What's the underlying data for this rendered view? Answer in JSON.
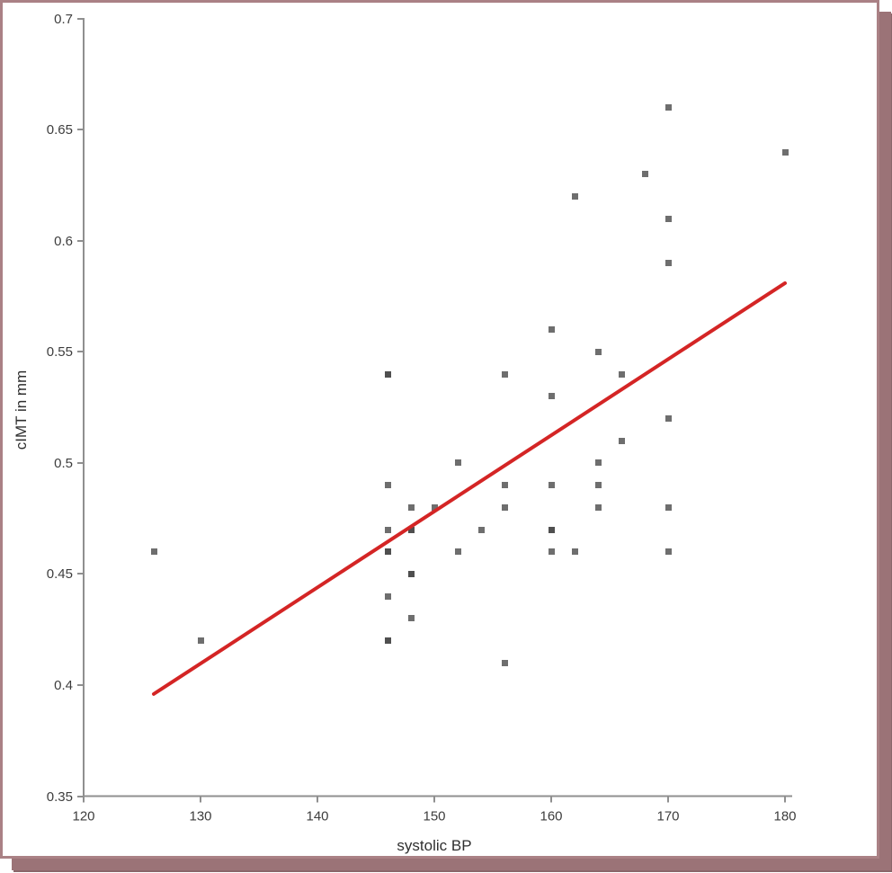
{
  "frame": {
    "border_color": "#aa8185",
    "shadow_color": "#9b7377",
    "shadow_edge_color": "#8a666a",
    "background": "#ffffff"
  },
  "axis_style": {
    "line_color": "#8f8f8f",
    "tick_label_color": "#3d3d3d",
    "title_color": "#2f2f2f",
    "tick_font_size": 15
  },
  "chart_data": {
    "type": "scatter",
    "title": "",
    "xlabel": "systolic BP",
    "ylabel": "cIMT in mm",
    "xlim": [
      120,
      180
    ],
    "ylim": [
      0.35,
      0.7
    ],
    "x_ticks": [
      120,
      130,
      140,
      150,
      160,
      170,
      180
    ],
    "x_tick_labels": [
      "120",
      "130",
      "140",
      "150",
      "160",
      "170",
      "180"
    ],
    "y_ticks": [
      0.35,
      0.4,
      0.45,
      0.5,
      0.55,
      0.6,
      0.65,
      0.7
    ],
    "y_tick_labels": [
      "0.35",
      "0.4",
      "0.45",
      "0.5",
      "0.55",
      "0.6",
      "0.65",
      "0.7"
    ],
    "grid": false,
    "legend": false,
    "marker": {
      "shape": "square",
      "size": 7,
      "color": "#6e6e6e",
      "overlap_color": "#4f4f4f"
    },
    "points": [
      {
        "x": 126,
        "y": 0.46
      },
      {
        "x": 130,
        "y": 0.42
      },
      {
        "x": 146,
        "y": 0.54,
        "dark": true
      },
      {
        "x": 146,
        "y": 0.49
      },
      {
        "x": 146,
        "y": 0.47
      },
      {
        "x": 146,
        "y": 0.46,
        "dark": true
      },
      {
        "x": 146,
        "y": 0.44
      },
      {
        "x": 146,
        "y": 0.42,
        "dark": true
      },
      {
        "x": 148,
        "y": 0.48
      },
      {
        "x": 148,
        "y": 0.47,
        "dark": true
      },
      {
        "x": 148,
        "y": 0.45,
        "dark": true
      },
      {
        "x": 148,
        "y": 0.43
      },
      {
        "x": 150,
        "y": 0.48
      },
      {
        "x": 152,
        "y": 0.5
      },
      {
        "x": 152,
        "y": 0.46
      },
      {
        "x": 154,
        "y": 0.47
      },
      {
        "x": 156,
        "y": 0.54
      },
      {
        "x": 156,
        "y": 0.49
      },
      {
        "x": 156,
        "y": 0.48
      },
      {
        "x": 156,
        "y": 0.41
      },
      {
        "x": 160,
        "y": 0.56
      },
      {
        "x": 160,
        "y": 0.53
      },
      {
        "x": 160,
        "y": 0.49
      },
      {
        "x": 160,
        "y": 0.47,
        "dark": true
      },
      {
        "x": 160,
        "y": 0.46
      },
      {
        "x": 162,
        "y": 0.62
      },
      {
        "x": 162,
        "y": 0.46
      },
      {
        "x": 164,
        "y": 0.55
      },
      {
        "x": 164,
        "y": 0.5
      },
      {
        "x": 164,
        "y": 0.49
      },
      {
        "x": 164,
        "y": 0.48
      },
      {
        "x": 166,
        "y": 0.54
      },
      {
        "x": 166,
        "y": 0.51
      },
      {
        "x": 168,
        "y": 0.63
      },
      {
        "x": 170,
        "y": 0.66
      },
      {
        "x": 170,
        "y": 0.61
      },
      {
        "x": 170,
        "y": 0.59
      },
      {
        "x": 170,
        "y": 0.52
      },
      {
        "x": 170,
        "y": 0.48
      },
      {
        "x": 170,
        "y": 0.46
      },
      {
        "x": 180,
        "y": 0.64
      }
    ],
    "trendline": {
      "type": "linear",
      "x1": 126,
      "y1": 0.396,
      "x2": 180,
      "y2": 0.581,
      "color": "#d42525",
      "width": 4
    }
  }
}
